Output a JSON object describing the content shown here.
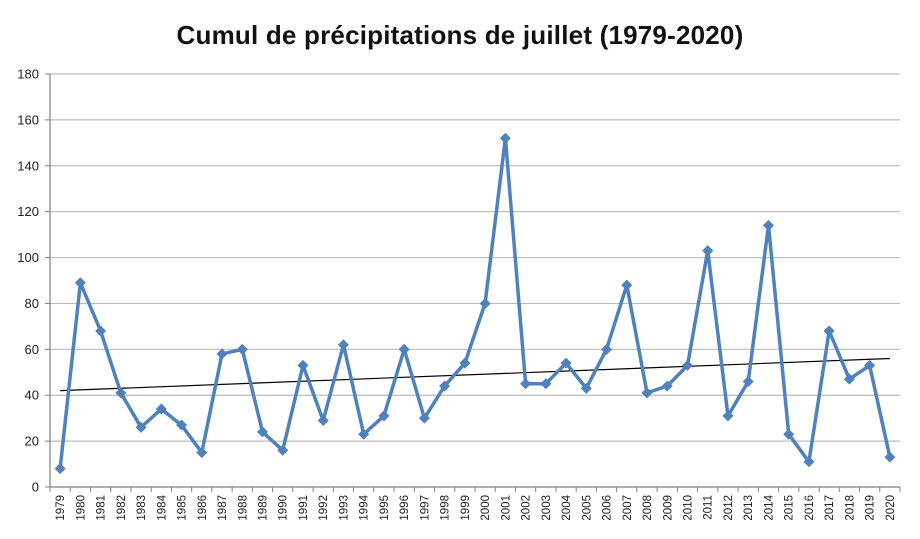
{
  "chart_data": {
    "type": "line",
    "title": "Cumul de précipitations de juillet (1979-2020)",
    "xlabel": "",
    "ylabel": "",
    "ylim": [
      0,
      180
    ],
    "yticks": [
      0,
      20,
      40,
      60,
      80,
      100,
      120,
      140,
      160,
      180
    ],
    "grid": true,
    "legend": "none",
    "categories": [
      "1979",
      "1980",
      "1981",
      "1982",
      "1983",
      "1984",
      "1985",
      "1986",
      "1987",
      "1988",
      "1989",
      "1990",
      "1991",
      "1992",
      "1993",
      "1994",
      "1995",
      "1996",
      "1997",
      "1998",
      "1999",
      "2000",
      "2001",
      "2002",
      "2003",
      "2004",
      "2005",
      "2006",
      "2007",
      "2008",
      "2009",
      "2010",
      "2011",
      "2012",
      "2013",
      "2014",
      "2015",
      "2016",
      "2017",
      "2018",
      "2019",
      "2020"
    ],
    "series": [
      {
        "color": "#4f81bd",
        "values": [
          8,
          89,
          68,
          41,
          26,
          34,
          27,
          15,
          58,
          60,
          24,
          16,
          53,
          29,
          62,
          23,
          31,
          60,
          30,
          44,
          54,
          80,
          152,
          45,
          45,
          54,
          43,
          60,
          88,
          41,
          44,
          53,
          103,
          31,
          46,
          114,
          23,
          11,
          68,
          47,
          53,
          13
        ]
      }
    ],
    "trendline": {
      "type": "linear",
      "color": "#000000",
      "start": 42,
      "end": 56
    }
  }
}
